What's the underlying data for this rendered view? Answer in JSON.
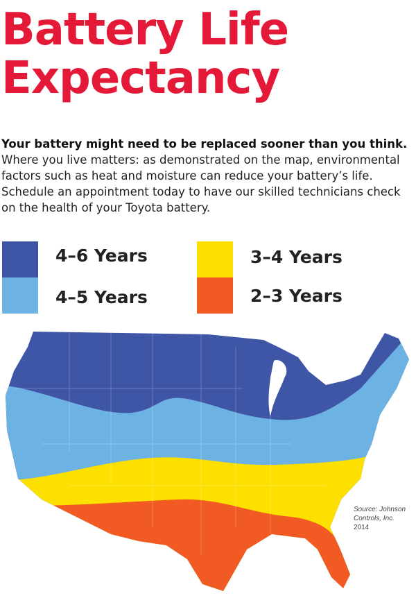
{
  "title_line1": "Battery Life",
  "title_line2": "Expectancy",
  "intro_bold": "Your battery might need to be replaced sooner than you think.",
  "intro_body": "Where you live matters: as demonstrated on the map, environmental factors such as heat and moisture can reduce your battery’s life. Schedule an appointment today to have our skilled technicians check on the health of your Toyota battery.",
  "legend": [
    {
      "label": "4–6 Years",
      "color": "#3f55a6"
    },
    {
      "label": "4–5 Years",
      "color": "#6cb2e2"
    },
    {
      "label": "3–4 Years",
      "color": "#fee000"
    },
    {
      "label": "2–3 Years",
      "color": "#f15a22"
    }
  ],
  "source": {
    "line1": "Source: Johnson",
    "line2": "Controls, Inc.",
    "year": "2014"
  }
}
